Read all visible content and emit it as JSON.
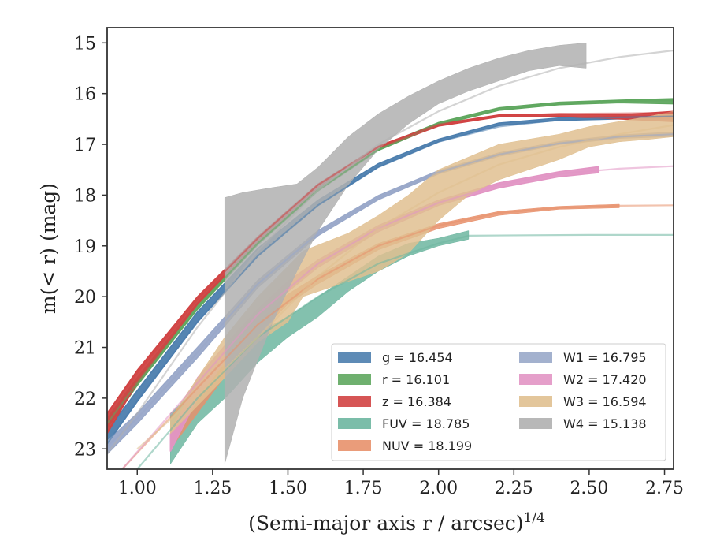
{
  "chart_data": {
    "type": "line",
    "xlabel": "(Semi-major axis r / arcsec)",
    "xlabel_sup": "1/4",
    "ylabel": "m(< r) (mag)",
    "xlim": [
      0.9,
      2.78
    ],
    "ylim": [
      23.4,
      14.7
    ],
    "y_inverted": true,
    "x_ticks": [
      1.0,
      1.25,
      1.5,
      1.75,
      2.0,
      2.25,
      2.5,
      2.75
    ],
    "x_tick_labels": [
      "1.00",
      "1.25",
      "1.50",
      "1.75",
      "2.00",
      "2.25",
      "2.50",
      "2.75"
    ],
    "y_ticks": [
      15,
      16,
      17,
      18,
      19,
      20,
      21,
      22,
      23
    ],
    "y_tick_labels": [
      "15",
      "16",
      "17",
      "18",
      "19",
      "20",
      "21",
      "22",
      "23"
    ],
    "grid": false,
    "legend_position": "lower-right",
    "legend_columns": 2,
    "series": [
      {
        "name": "g = 16.454",
        "color": "#4c7eae",
        "model": [
          [
            0.9,
            22.9
          ],
          [
            1.0,
            22.05
          ],
          [
            1.2,
            20.5
          ],
          [
            1.4,
            19.2
          ],
          [
            1.6,
            18.2
          ],
          [
            1.8,
            17.45
          ],
          [
            2.0,
            16.95
          ],
          [
            2.2,
            16.65
          ],
          [
            2.4,
            16.52
          ],
          [
            2.6,
            16.47
          ],
          [
            2.78,
            16.45
          ]
        ],
        "band": [
          [
            0.9,
            22.9,
            22.65
          ],
          [
            1.0,
            22.07,
            21.85
          ],
          [
            1.2,
            20.5,
            20.3
          ],
          [
            1.4,
            19.2,
            19.05
          ],
          [
            1.6,
            18.2,
            18.1
          ],
          [
            1.8,
            17.45,
            17.38
          ],
          [
            2.0,
            16.95,
            16.9
          ],
          [
            2.2,
            16.63,
            16.58
          ],
          [
            2.4,
            16.53,
            16.48
          ],
          [
            2.6,
            16.5,
            16.45
          ],
          [
            2.78,
            16.5,
            16.43
          ]
        ]
      },
      {
        "name": "r = 16.101",
        "color": "#5fa75f",
        "model": [
          [
            0.9,
            22.5
          ],
          [
            1.0,
            21.7
          ],
          [
            1.2,
            20.2
          ],
          [
            1.4,
            18.95
          ],
          [
            1.6,
            17.9
          ],
          [
            1.8,
            17.1
          ],
          [
            2.0,
            16.6
          ],
          [
            2.2,
            16.32
          ],
          [
            2.4,
            16.2
          ],
          [
            2.6,
            16.15
          ],
          [
            2.78,
            16.13
          ]
        ],
        "band": [
          [
            0.9,
            22.6,
            22.4
          ],
          [
            1.0,
            21.75,
            21.6
          ],
          [
            1.2,
            20.25,
            20.12
          ],
          [
            1.4,
            18.98,
            18.88
          ],
          [
            1.6,
            17.92,
            17.85
          ],
          [
            1.8,
            17.12,
            17.06
          ],
          [
            2.0,
            16.62,
            16.57
          ],
          [
            2.2,
            16.33,
            16.28
          ],
          [
            2.4,
            16.22,
            16.17
          ],
          [
            2.6,
            16.18,
            16.13
          ],
          [
            2.78,
            16.2,
            16.1
          ]
        ]
      },
      {
        "name": "z = 16.384",
        "color": "#d14343",
        "model": [
          [
            0.9,
            22.3
          ],
          [
            1.0,
            21.5
          ],
          [
            1.2,
            20.05
          ],
          [
            1.4,
            18.85
          ],
          [
            1.6,
            17.8
          ],
          [
            1.8,
            17.05
          ],
          [
            2.0,
            16.62
          ],
          [
            2.2,
            16.45
          ],
          [
            2.4,
            16.4
          ],
          [
            2.6,
            16.39
          ],
          [
            2.78,
            16.38
          ]
        ],
        "band": [
          [
            0.9,
            22.7,
            22.3
          ],
          [
            1.0,
            21.7,
            21.45
          ],
          [
            1.2,
            20.15,
            20.0
          ],
          [
            1.4,
            18.92,
            18.82
          ],
          [
            1.6,
            17.85,
            17.78
          ],
          [
            1.8,
            17.08,
            17.03
          ],
          [
            2.0,
            16.64,
            16.6
          ],
          [
            2.2,
            16.46,
            16.42
          ],
          [
            2.4,
            16.45,
            16.4
          ],
          [
            2.6,
            16.5,
            16.42
          ],
          [
            2.78,
            16.55,
            16.35
          ]
        ]
      },
      {
        "name": "FUV = 18.785",
        "color": "#6db6a0",
        "model": [
          [
            1.0,
            23.4
          ],
          [
            1.2,
            22.0
          ],
          [
            1.4,
            20.8
          ],
          [
            1.6,
            20.0
          ],
          [
            1.8,
            19.35
          ],
          [
            2.0,
            18.95
          ],
          [
            2.1,
            18.8
          ],
          [
            2.3,
            18.79
          ],
          [
            2.5,
            18.785
          ],
          [
            2.78,
            18.785
          ]
        ],
        "band": [
          [
            1.11,
            23.3,
            22.3
          ],
          [
            1.2,
            22.5,
            21.8
          ],
          [
            1.3,
            21.95,
            21.3
          ],
          [
            1.4,
            21.3,
            20.7
          ],
          [
            1.5,
            20.8,
            20.4
          ],
          [
            1.6,
            20.4,
            20.0
          ],
          [
            1.7,
            19.9,
            19.6
          ],
          [
            1.8,
            19.5,
            19.2
          ],
          [
            1.9,
            19.2,
            18.95
          ],
          [
            2.0,
            19.0,
            18.85
          ],
          [
            2.1,
            18.87,
            18.7
          ]
        ]
      },
      {
        "name": "NUV = 18.199",
        "color": "#e8916c",
        "model": [
          [
            0.95,
            23.4
          ],
          [
            1.2,
            21.8
          ],
          [
            1.4,
            20.55
          ],
          [
            1.6,
            19.65
          ],
          [
            1.8,
            19.0
          ],
          [
            2.0,
            18.6
          ],
          [
            2.2,
            18.35
          ],
          [
            2.4,
            18.25
          ],
          [
            2.6,
            18.21
          ],
          [
            2.78,
            18.2
          ]
        ],
        "band": [
          [
            1.11,
            23.0,
            22.6
          ],
          [
            1.2,
            22.3,
            21.8
          ],
          [
            1.3,
            21.5,
            21.1
          ],
          [
            1.4,
            20.75,
            20.45
          ],
          [
            1.5,
            20.15,
            19.95
          ],
          [
            1.6,
            19.75,
            19.58
          ],
          [
            1.8,
            19.08,
            18.95
          ],
          [
            2.0,
            18.66,
            18.56
          ],
          [
            2.2,
            18.4,
            18.32
          ],
          [
            2.4,
            18.28,
            18.22
          ],
          [
            2.6,
            18.25,
            18.18
          ]
        ]
      },
      {
        "name": "W1 = 16.795",
        "color": "#99a8c9",
        "model": [
          [
            0.9,
            22.95
          ],
          [
            1.0,
            22.4
          ],
          [
            1.2,
            21.1
          ],
          [
            1.4,
            19.75
          ],
          [
            1.6,
            18.75
          ],
          [
            1.8,
            18.05
          ],
          [
            2.0,
            17.55
          ],
          [
            2.2,
            17.2
          ],
          [
            2.4,
            16.98
          ],
          [
            2.6,
            16.85
          ],
          [
            2.78,
            16.8
          ]
        ],
        "band": [
          [
            0.9,
            23.1,
            22.85
          ],
          [
            1.0,
            22.5,
            22.3
          ],
          [
            1.2,
            21.2,
            21.0
          ],
          [
            1.4,
            19.82,
            19.68
          ],
          [
            1.6,
            18.8,
            18.7
          ],
          [
            1.8,
            18.09,
            18.01
          ],
          [
            2.0,
            17.58,
            17.52
          ],
          [
            2.2,
            17.23,
            17.17
          ],
          [
            2.4,
            17.0,
            16.95
          ],
          [
            2.6,
            16.88,
            16.82
          ],
          [
            2.78,
            16.84,
            16.76
          ]
        ]
      },
      {
        "name": "W2 = 17.420",
        "color": "#e295c4",
        "model": [
          [
            0.95,
            23.4
          ],
          [
            1.2,
            21.7
          ],
          [
            1.4,
            20.35
          ],
          [
            1.6,
            19.35
          ],
          [
            1.8,
            18.65
          ],
          [
            2.0,
            18.15
          ],
          [
            2.2,
            17.8
          ],
          [
            2.4,
            17.58
          ],
          [
            2.6,
            17.48
          ],
          [
            2.78,
            17.43
          ]
        ],
        "band": [
          [
            1.11,
            23.05,
            22.7
          ],
          [
            1.2,
            22.0,
            21.6
          ],
          [
            1.3,
            21.2,
            20.9
          ],
          [
            1.4,
            20.5,
            20.25
          ],
          [
            1.5,
            19.9,
            19.7
          ],
          [
            1.6,
            19.42,
            19.28
          ],
          [
            1.8,
            18.72,
            18.6
          ],
          [
            2.0,
            18.2,
            18.1
          ],
          [
            2.2,
            17.86,
            17.76
          ],
          [
            2.4,
            17.64,
            17.54
          ],
          [
            2.53,
            17.56,
            17.44
          ]
        ]
      },
      {
        "name": "W3 = 16.594",
        "color": "#e0c090",
        "model": [
          [
            1.0,
            23.0
          ],
          [
            1.2,
            21.95
          ],
          [
            1.4,
            20.8
          ],
          [
            1.6,
            19.6
          ],
          [
            1.8,
            18.65
          ],
          [
            2.0,
            17.95
          ],
          [
            2.2,
            17.4
          ],
          [
            2.4,
            17.05
          ],
          [
            2.6,
            16.8
          ],
          [
            2.78,
            16.62
          ]
        ],
        "band": [
          [
            1.11,
            22.7,
            22.4
          ],
          [
            1.29,
            21.6,
            20.8
          ],
          [
            1.4,
            20.9,
            20.0
          ],
          [
            1.5,
            20.5,
            19.4
          ],
          [
            1.55,
            20.0,
            19.1
          ],
          [
            1.7,
            19.7,
            18.75
          ],
          [
            1.8,
            19.5,
            18.4
          ],
          [
            1.9,
            19.15,
            18.0
          ],
          [
            2.0,
            18.5,
            17.5
          ],
          [
            2.1,
            18.0,
            17.25
          ],
          [
            2.2,
            17.7,
            17.0
          ],
          [
            2.3,
            17.5,
            16.9
          ],
          [
            2.4,
            17.3,
            16.8
          ],
          [
            2.5,
            17.05,
            16.65
          ],
          [
            2.6,
            16.95,
            16.55
          ],
          [
            2.7,
            16.9,
            16.45
          ],
          [
            2.78,
            16.85,
            16.35
          ]
        ]
      },
      {
        "name": "W4 = 15.138",
        "color": "#b0b0b0",
        "model": [
          [
            0.9,
            23.1
          ],
          [
            1.0,
            22.3
          ],
          [
            1.2,
            20.6
          ],
          [
            1.4,
            19.1
          ],
          [
            1.6,
            17.9
          ],
          [
            1.8,
            17.0
          ],
          [
            2.0,
            16.35
          ],
          [
            2.2,
            15.85
          ],
          [
            2.4,
            15.5
          ],
          [
            2.6,
            15.28
          ],
          [
            2.78,
            15.15
          ]
        ],
        "band": [
          [
            1.29,
            23.3,
            18.05
          ],
          [
            1.35,
            22.0,
            17.95
          ],
          [
            1.45,
            20.5,
            17.85
          ],
          [
            1.53,
            19.5,
            17.78
          ],
          [
            1.6,
            18.7,
            17.45
          ],
          [
            1.7,
            17.8,
            16.85
          ],
          [
            1.8,
            17.1,
            16.4
          ],
          [
            1.9,
            16.6,
            16.05
          ],
          [
            2.0,
            16.2,
            15.75
          ],
          [
            2.1,
            15.95,
            15.5
          ],
          [
            2.2,
            15.75,
            15.3
          ],
          [
            2.3,
            15.55,
            15.15
          ],
          [
            2.4,
            15.45,
            15.05
          ],
          [
            2.49,
            15.5,
            15.0
          ]
        ]
      }
    ]
  }
}
